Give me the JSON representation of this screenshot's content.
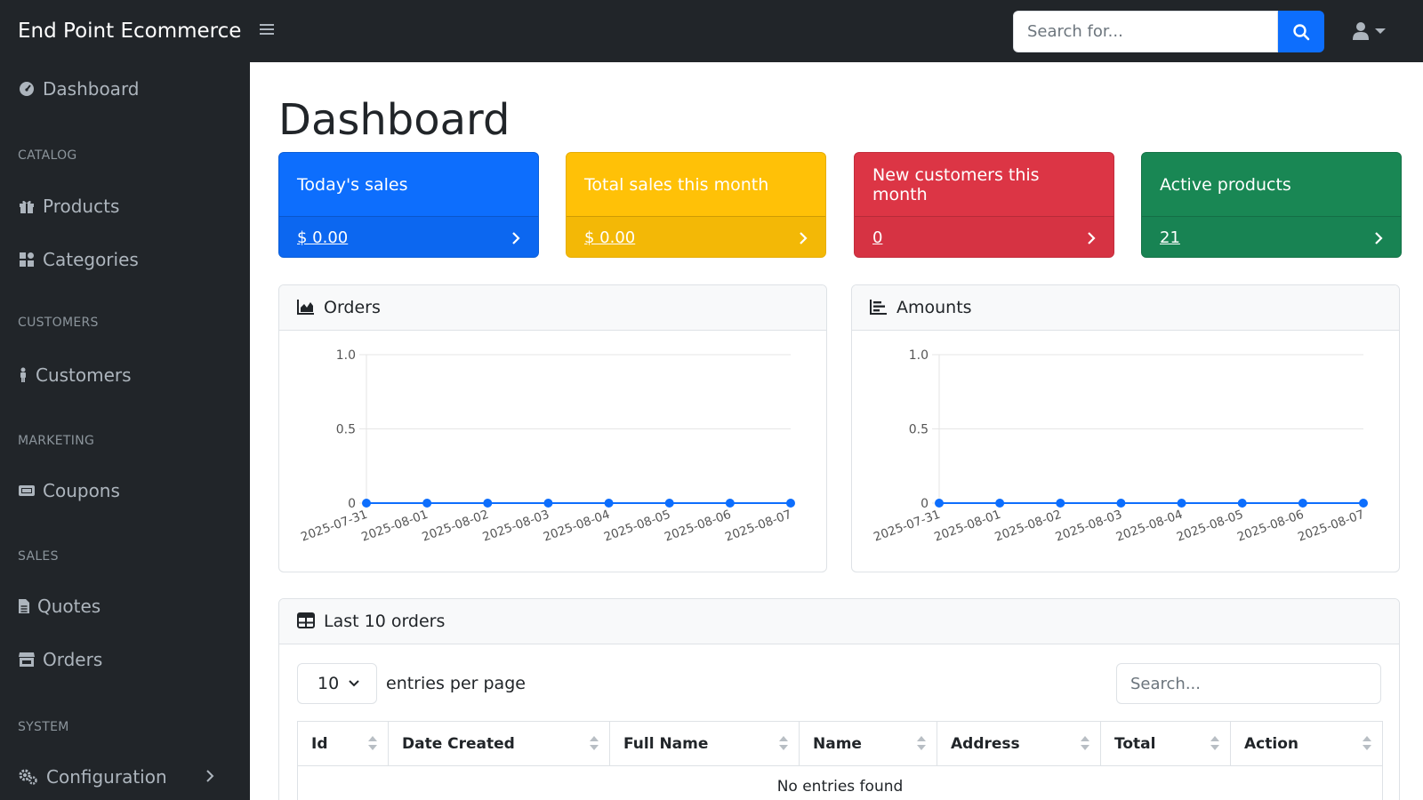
{
  "topbar": {
    "brand": "End Point Ecommerce",
    "search_placeholder": "Search for..."
  },
  "sidebar": {
    "dashboard": "Dashboard",
    "sections": {
      "catalog": "CATALOG",
      "customers": "CUSTOMERS",
      "marketing": "MARKETING",
      "sales": "SALES",
      "system": "SYSTEM"
    },
    "items": {
      "products": "Products",
      "categories": "Categories",
      "customers": "Customers",
      "coupons": "Coupons",
      "quotes": "Quotes",
      "orders": "Orders",
      "configuration": "Configuration"
    }
  },
  "main": {
    "title": "Dashboard",
    "cards": [
      {
        "label": "Today's sales",
        "value": "$ 0.00",
        "color": "#0d6efd"
      },
      {
        "label": "Total sales this month",
        "value": "$ 0.00",
        "color": "#ffc107"
      },
      {
        "label": "New customers this month",
        "value": "0",
        "color": "#dc3545"
      },
      {
        "label": "Active products",
        "value": "21",
        "color": "#198754"
      }
    ],
    "orders_panel_title": "Orders",
    "amounts_panel_title": "Amounts",
    "table_panel_title": "Last 10 orders",
    "entries_value": "10",
    "entries_label": "entries per page",
    "table_search_placeholder": "Search...",
    "columns": [
      "Id",
      "Date Created",
      "Full Name",
      "Name",
      "Address",
      "Total",
      "Action"
    ],
    "empty_message": "No entries found"
  },
  "chart_data": [
    {
      "type": "line",
      "panel": "Orders",
      "x": [
        "2025-07-31",
        "2025-08-01",
        "2025-08-02",
        "2025-08-03",
        "2025-08-04",
        "2025-08-05",
        "2025-08-06",
        "2025-08-07"
      ],
      "values": [
        0,
        0,
        0,
        0,
        0,
        0,
        0,
        0
      ],
      "yticks": [
        "0",
        "0.5",
        "1.0"
      ],
      "ylim": [
        0,
        1
      ],
      "color": "#0d6efd"
    },
    {
      "type": "line",
      "panel": "Amounts",
      "x": [
        "2025-07-31",
        "2025-08-01",
        "2025-08-02",
        "2025-08-03",
        "2025-08-04",
        "2025-08-05",
        "2025-08-06",
        "2025-08-07"
      ],
      "values": [
        0,
        0,
        0,
        0,
        0,
        0,
        0,
        0
      ],
      "yticks": [
        "0",
        "0.5",
        "1.0"
      ],
      "ylim": [
        0,
        1
      ],
      "color": "#0d6efd"
    }
  ]
}
